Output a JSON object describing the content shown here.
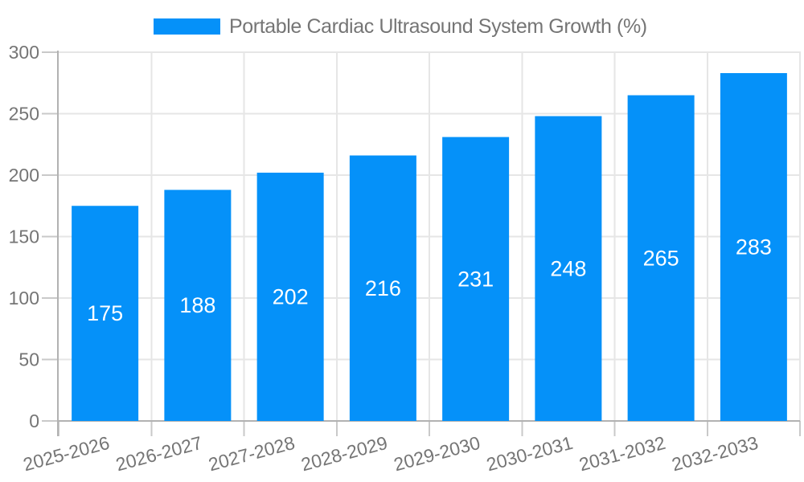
{
  "legend": {
    "label": "Portable Cardiac Ultrasound System Growth (%)"
  },
  "chart_data": {
    "type": "bar",
    "title": "Portable Cardiac Ultrasound System Growth (%)",
    "categories": [
      "2025-2026",
      "2026-2027",
      "2027-2028",
      "2028-2029",
      "2029-2030",
      "2030-2031",
      "2031-2032",
      "2032-2033"
    ],
    "values": [
      175,
      188,
      202,
      216,
      231,
      248,
      265,
      283
    ],
    "xlabel": "",
    "ylabel": "",
    "ylim": [
      0,
      300
    ],
    "y_ticks": [
      0,
      50,
      100,
      150,
      200,
      250,
      300
    ],
    "grid": true,
    "legend_position": "top",
    "x_label_rotation_deg": -15,
    "colors": {
      "bar": "#0591f9",
      "bar_label": "#ffffff",
      "axis_text": "#757575",
      "gridline": "#e6e6e6",
      "tick": "#c9c9c9",
      "axis_line": "#b2b2b2",
      "background": "#ffffff"
    }
  }
}
